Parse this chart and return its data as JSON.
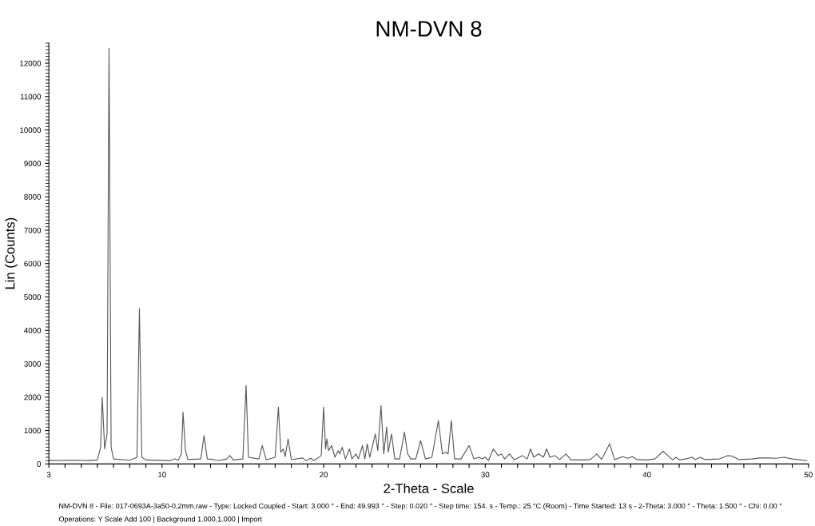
{
  "chart_data": {
    "type": "line",
    "title": "NM-DVN 8",
    "xlabel": "2-Theta - Scale",
    "ylabel": "Lin (Counts)",
    "annotations": [
      "NM-DVN 8 - File: 017-0693A-3a50-0,2mm.raw - Type: Locked Coupled - Start: 3.000 ° - End: 49.993 ° - Step: 0.020 ° - Step time: 154. s - Temp.: 25 °C (Room) - Time Started: 13 s - 2-Theta: 3.000 ° - Theta: 1.500 ° - Chi: 0.00 °",
      "Operations: Y Scale Add 100 | Background 1.000,1.000 | Import"
    ],
    "series": [
      {
        "color": "#555555",
        "x": [
          3.0,
          4.5,
          5.5,
          6.0,
          6.2,
          6.3,
          6.45,
          6.6,
          6.72,
          6.85,
          7.0,
          8.0,
          8.45,
          8.6,
          8.75,
          9.0,
          10.5,
          10.8,
          11.0,
          11.2,
          11.3,
          11.45,
          11.6,
          12.4,
          12.6,
          12.8,
          13.2,
          13.5,
          14.0,
          14.2,
          14.4,
          15.0,
          15.2,
          15.35,
          16.0,
          16.2,
          16.45,
          17.0,
          17.2,
          17.35,
          17.5,
          17.62,
          17.8,
          18.0,
          18.7,
          18.9,
          19.2,
          19.4,
          19.85,
          20.0,
          20.12,
          20.2,
          20.3,
          20.5,
          20.7,
          20.9,
          21.0,
          21.15,
          21.35,
          21.6,
          21.75,
          22.0,
          22.15,
          22.4,
          22.55,
          22.7,
          22.85,
          23.2,
          23.35,
          23.55,
          23.72,
          23.9,
          24.0,
          24.2,
          24.4,
          24.7,
          25.0,
          25.2,
          25.4,
          25.7,
          26.0,
          26.3,
          26.7,
          27.1,
          27.35,
          27.55,
          27.7,
          27.9,
          28.1,
          28.5,
          29.0,
          29.3,
          29.6,
          29.8,
          30.0,
          30.2,
          30.5,
          30.8,
          31.0,
          31.2,
          31.5,
          31.8,
          32.3,
          32.6,
          32.8,
          33.0,
          33.3,
          33.6,
          33.8,
          34.0,
          34.3,
          34.6,
          35.0,
          35.3,
          36.0,
          36.5,
          36.9,
          37.2,
          37.7,
          38.0,
          38.5,
          38.8,
          39.1,
          39.4,
          40.0,
          40.5,
          41.0,
          41.3,
          41.6,
          41.8,
          42.0,
          42.4,
          42.8,
          43.0,
          43.3,
          43.6,
          44.5,
          45.0,
          45.3,
          45.7,
          46.5,
          47.0,
          47.5,
          48.0,
          48.5,
          49.0,
          49.9
        ],
        "values": [
          100,
          110,
          100,
          120,
          500,
          2000,
          450,
          900,
          12450,
          500,
          150,
          110,
          200,
          4650,
          200,
          120,
          100,
          150,
          110,
          300,
          1550,
          400,
          130,
          150,
          850,
          150,
          130,
          100,
          150,
          250,
          120,
          150,
          2350,
          200,
          150,
          550,
          120,
          200,
          1700,
          350,
          450,
          220,
          750,
          130,
          180,
          100,
          170,
          100,
          250,
          1700,
          450,
          750,
          400,
          550,
          200,
          400,
          300,
          500,
          150,
          450,
          150,
          300,
          150,
          550,
          150,
          600,
          200,
          900,
          400,
          1750,
          300,
          1100,
          350,
          900,
          150,
          150,
          950,
          300,
          150,
          150,
          700,
          150,
          200,
          1300,
          300,
          350,
          300,
          1300,
          150,
          150,
          550,
          150,
          200,
          150,
          200,
          100,
          450,
          250,
          300,
          150,
          300,
          120,
          250,
          150,
          450,
          200,
          300,
          200,
          450,
          200,
          250,
          130,
          300,
          120,
          120,
          130,
          300,
          140,
          600,
          130,
          220,
          170,
          220,
          130,
          120,
          150,
          380,
          250,
          120,
          200,
          120,
          150,
          200,
          130,
          200,
          130,
          150,
          250,
          230,
          130,
          150,
          180,
          180,
          170,
          200,
          150,
          100
        ]
      }
    ],
    "xlim": [
      3,
      50
    ],
    "xticks": [
      3,
      {
        "value": 4,
        "label": null
      },
      {
        "value": 5,
        "label": null
      },
      {
        "value": 6,
        "label": null
      },
      {
        "value": 7,
        "label": null
      },
      {
        "value": 8,
        "label": null
      },
      {
        "value": 9,
        "label": null
      },
      10,
      {
        "value": 11,
        "label": null
      },
      {
        "value": 12,
        "label": null
      },
      {
        "value": 13,
        "label": null
      },
      {
        "value": 14,
        "label": null
      },
      {
        "value": 15,
        "label": null
      },
      {
        "value": 16,
        "label": null
      },
      {
        "value": 17,
        "label": null
      },
      {
        "value": 18,
        "label": null
      },
      {
        "value": 19,
        "label": null
      },
      20,
      {
        "value": 21,
        "label": null
      },
      {
        "value": 22,
        "label": null
      },
      {
        "value": 23,
        "label": null
      },
      {
        "value": 24,
        "label": null
      },
      {
        "value": 25,
        "label": null
      },
      {
        "value": 26,
        "label": null
      },
      {
        "value": 27,
        "label": null
      },
      {
        "value": 28,
        "label": null
      },
      {
        "value": 29,
        "label": null
      },
      30,
      {
        "value": 31,
        "label": null
      },
      {
        "value": 32,
        "label": null
      },
      {
        "value": 33,
        "label": null
      },
      {
        "value": 34,
        "label": null
      },
      {
        "value": 35,
        "label": null
      },
      {
        "value": 36,
        "label": null
      },
      {
        "value": 37,
        "label": null
      },
      {
        "value": 38,
        "label": null
      },
      {
        "value": 39,
        "label": null
      },
      40,
      {
        "value": 41,
        "label": null
      },
      {
        "value": 42,
        "label": null
      },
      {
        "value": 43,
        "label": null
      },
      {
        "value": 44,
        "label": null
      },
      {
        "value": 45,
        "label": null
      },
      {
        "value": 46,
        "label": null
      },
      {
        "value": 47,
        "label": null
      },
      {
        "value": 48,
        "label": null
      },
      {
        "value": 49,
        "label": null
      },
      50
    ],
    "ylim": [
      0,
      12600
    ],
    "yticks": [
      0,
      1000,
      2000,
      3000,
      4000,
      5000,
      6000,
      7000,
      8000,
      9000,
      10000,
      11000,
      12000
    ],
    "grid": false,
    "legend": false
  }
}
